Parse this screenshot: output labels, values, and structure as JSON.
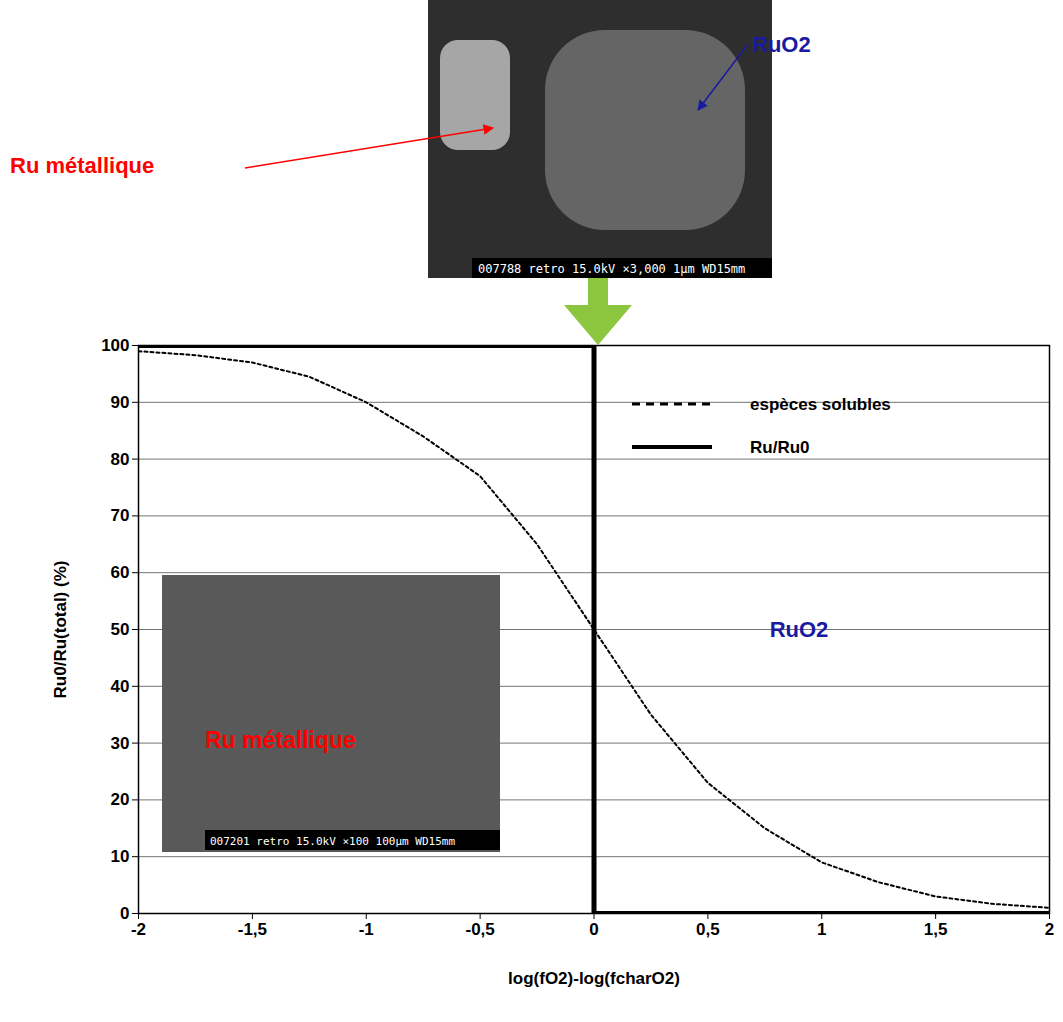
{
  "chart_data": {
    "type": "line",
    "x_label": "log(fO2)-log(fcharO2)",
    "y_label": "Ru0/Ru(total) (%)",
    "xlim": [
      -2,
      2
    ],
    "ylim": [
      0,
      100
    ],
    "xticks": [
      -2,
      {
        "value": -1.5,
        "label": "-1,5"
      },
      -1,
      {
        "value": -0.5,
        "label": "-0,5"
      },
      0,
      {
        "value": 0.5,
        "label": "0,5"
      },
      1,
      {
        "value": 1.5,
        "label": "1,5"
      },
      2
    ],
    "yticks": [
      0,
      10,
      20,
      30,
      40,
      50,
      60,
      70,
      80,
      90,
      100
    ],
    "grid": true,
    "legend": "top-right",
    "series": [
      {
        "name": "espèces solubles",
        "color": "#000000",
        "line_style": "dotted",
        "x": [
          -2,
          -1.75,
          -1.5,
          -1.25,
          -1,
          -0.75,
          -0.5,
          -0.25,
          0,
          0.25,
          0.5,
          0.75,
          1,
          1.25,
          1.5,
          1.75,
          2
        ],
        "values": [
          99,
          98.3,
          97,
          94.5,
          90,
          84,
          77,
          65,
          50,
          35,
          23,
          15,
          9,
          5.5,
          3,
          1.7,
          1
        ]
      },
      {
        "name": "Ru/Ru0",
        "color": "#000000",
        "line_style": "solid",
        "x": [
          -2,
          0,
          0,
          2
        ],
        "values": [
          100,
          100,
          0,
          0
        ]
      }
    ],
    "annotations": [
      {
        "text": "RuO2",
        "color": "#1a1aa0",
        "x": 0.9,
        "y": 50
      }
    ],
    "images": [
      {
        "caption": "007788 retro 15.0kV ×3,000 1µm WD15mm",
        "labels": [
          {
            "text": "Ru métallique",
            "color": "#ff0000"
          },
          {
            "text": "RuO2",
            "color": "#1a1aa0"
          }
        ]
      },
      {
        "caption": "007201 retro 15.0kV ×100 100µm WD15mm",
        "labels": [
          {
            "text": "Ru métallique",
            "color": "#ff0000"
          }
        ]
      }
    ]
  }
}
